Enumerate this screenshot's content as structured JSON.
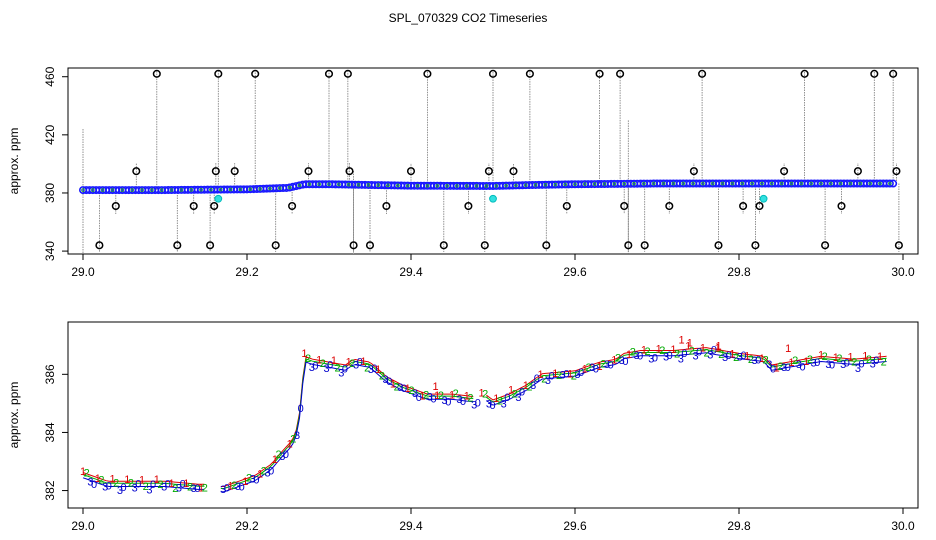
{
  "chart_data": [
    {
      "type": "scatter",
      "title": "SPL_070329  CO2 Timeseries",
      "xlabel": "",
      "ylabel": "approx. ppm",
      "xlim": [
        29.0,
        30.0
      ],
      "ylim": [
        338,
        466
      ],
      "x_ticks": [
        29.0,
        29.2,
        29.4,
        29.6,
        29.8,
        30.0
      ],
      "x_tick_labels": [
        "29.0",
        "29.2",
        "29.4",
        "29.6",
        "29.8",
        "30.0"
      ],
      "y_ticks": [
        340,
        380,
        420,
        460
      ],
      "y_tick_labels": [
        "340",
        "380",
        "420",
        "460"
      ],
      "series": [
        {
          "name": "baseline (blue)",
          "x": [
            29.0,
            29.1,
            29.2,
            29.25,
            29.27,
            29.3,
            29.35,
            29.4,
            29.5,
            29.55,
            29.6,
            29.7,
            29.8,
            29.9,
            29.99
          ],
          "y": [
            382,
            382,
            382.5,
            383.5,
            386,
            386,
            385.5,
            385,
            384.8,
            385.5,
            386,
            386.5,
            386.5,
            386.5,
            386.5
          ]
        },
        {
          "name": "spikes (black circles)",
          "x": [
            29.02,
            29.04,
            29.065,
            29.09,
            29.115,
            29.135,
            29.155,
            29.16,
            29.162,
            29.165,
            29.185,
            29.21,
            29.235,
            29.255,
            29.275,
            29.3,
            29.323,
            29.325,
            29.33,
            29.35,
            29.37,
            29.4,
            29.42,
            29.44,
            29.47,
            29.49,
            29.495,
            29.5,
            29.525,
            29.545,
            29.565,
            29.59,
            29.63,
            29.655,
            29.66,
            29.665,
            29.685,
            29.715,
            29.745,
            29.755,
            29.775,
            29.805,
            29.82,
            29.825,
            29.855,
            29.88,
            29.905,
            29.925,
            29.945,
            29.965,
            29.988,
            29.992,
            29.995
          ],
          "y": [
            344,
            371,
            395,
            462,
            344,
            371,
            344,
            371,
            395,
            462,
            395,
            462,
            344,
            371,
            395,
            462,
            462,
            395,
            344,
            344,
            371,
            395,
            462,
            344,
            371,
            344,
            395,
            462,
            395,
            462,
            344,
            371,
            462,
            462,
            371,
            344,
            344,
            371,
            395,
            462,
            344,
            371,
            344,
            371,
            395,
            462,
            344,
            371,
            395,
            462,
            462,
            395,
            344
          ]
        },
        {
          "name": "cyan markers",
          "x": [
            29.165,
            29.5,
            29.83
          ],
          "y": [
            376,
            376,
            376
          ]
        }
      ]
    },
    {
      "type": "scatter",
      "title": "",
      "xlabel": "",
      "ylabel": "approx. ppm",
      "xlim": [
        29.0,
        30.0
      ],
      "ylim": [
        381.4,
        387.8
      ],
      "x_ticks": [
        29.0,
        29.2,
        29.4,
        29.6,
        29.8,
        30.0
      ],
      "x_tick_labels": [
        "29.0",
        "29.2",
        "29.4",
        "29.6",
        "29.8",
        "30.0"
      ],
      "y_ticks": [
        382,
        384,
        386
      ],
      "y_tick_labels": [
        "382",
        "384",
        "386"
      ],
      "marker_glyphs": [
        "1",
        "2",
        "3",
        "0"
      ],
      "series": [
        {
          "name": "trace",
          "x": [
            29.0,
            29.03,
            29.06,
            29.1,
            29.14,
            29.16,
            29.17,
            29.19,
            29.21,
            29.23,
            29.245,
            29.255,
            29.262,
            29.266,
            29.27,
            29.28,
            29.3,
            29.32,
            29.33,
            29.35,
            29.37,
            29.39,
            29.42,
            29.45,
            29.48,
            29.49,
            29.5,
            29.52,
            29.54,
            29.56,
            29.6,
            29.63,
            29.65,
            29.66,
            29.68,
            29.72,
            29.76,
            29.8,
            29.83,
            29.84,
            29.86,
            29.9,
            29.94,
            29.98
          ],
          "y": [
            382.5,
            382.2,
            382.2,
            382.2,
            382.1,
            382.1,
            382.0,
            382.2,
            382.4,
            382.8,
            383.3,
            383.6,
            384.1,
            385.0,
            386.5,
            386.4,
            386.3,
            386.2,
            386.4,
            386.3,
            385.8,
            385.5,
            385.2,
            385.2,
            385.1,
            385.2,
            385.0,
            385.2,
            385.5,
            385.9,
            386.0,
            386.3,
            386.4,
            386.6,
            386.7,
            386.7,
            386.8,
            386.6,
            386.5,
            386.2,
            386.3,
            386.5,
            386.4,
            386.5
          ]
        }
      ]
    }
  ]
}
